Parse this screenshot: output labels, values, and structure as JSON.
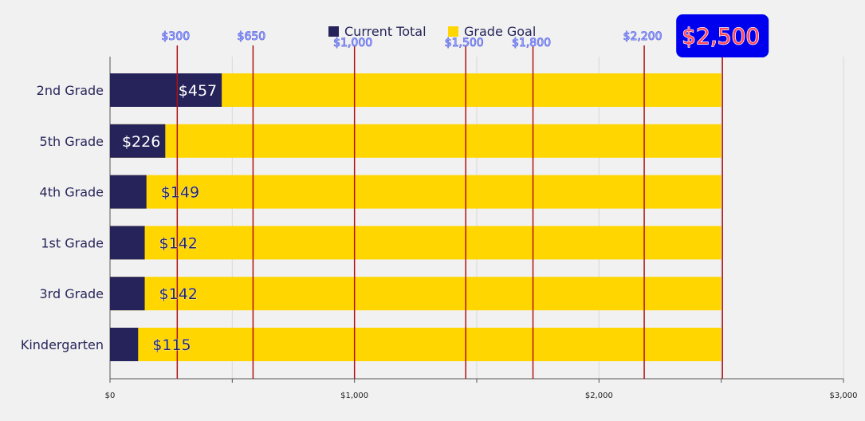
{
  "chart_data": {
    "type": "bar",
    "orientation": "horizontal",
    "stacked": false,
    "categories": [
      "2nd Grade",
      "5th Grade",
      "4th Grade",
      "1st Grade",
      "3rd Grade",
      "Kindergarten"
    ],
    "series": [
      {
        "name": "Current Total",
        "color": "#26235a",
        "values": [
          457,
          226,
          149,
          142,
          142,
          115
        ],
        "labels": [
          "$457",
          "$226",
          "$149",
          "$142",
          "$142",
          "$115"
        ]
      },
      {
        "name": "Grade Goal",
        "color": "#ffd600",
        "values": [
          2500,
          2500,
          2500,
          2500,
          2500,
          2500
        ]
      }
    ],
    "xlim": [
      0,
      3000
    ],
    "x_ticks": [
      {
        "value": 0,
        "label": "$0"
      },
      {
        "value": 1000,
        "label": "$1,000"
      },
      {
        "value": 2000,
        "label": "$2,000"
      },
      {
        "value": 3000,
        "label": "$3,000"
      }
    ],
    "grid": true,
    "legend": "top-center",
    "goal_lines": [
      {
        "value": 275,
        "label": "$300"
      },
      {
        "value": 585,
        "label": "$650"
      },
      {
        "value": 1000,
        "label": "$1,000"
      },
      {
        "value": 1455,
        "label": "$1,500"
      },
      {
        "value": 1730,
        "label": "$1,800"
      },
      {
        "value": 2185,
        "label": "$2,200"
      },
      {
        "value": 2505,
        "label": "$2,500",
        "highlight": true
      }
    ],
    "goal_line_color": "#b01010",
    "highlight_color": "#0000ee"
  }
}
